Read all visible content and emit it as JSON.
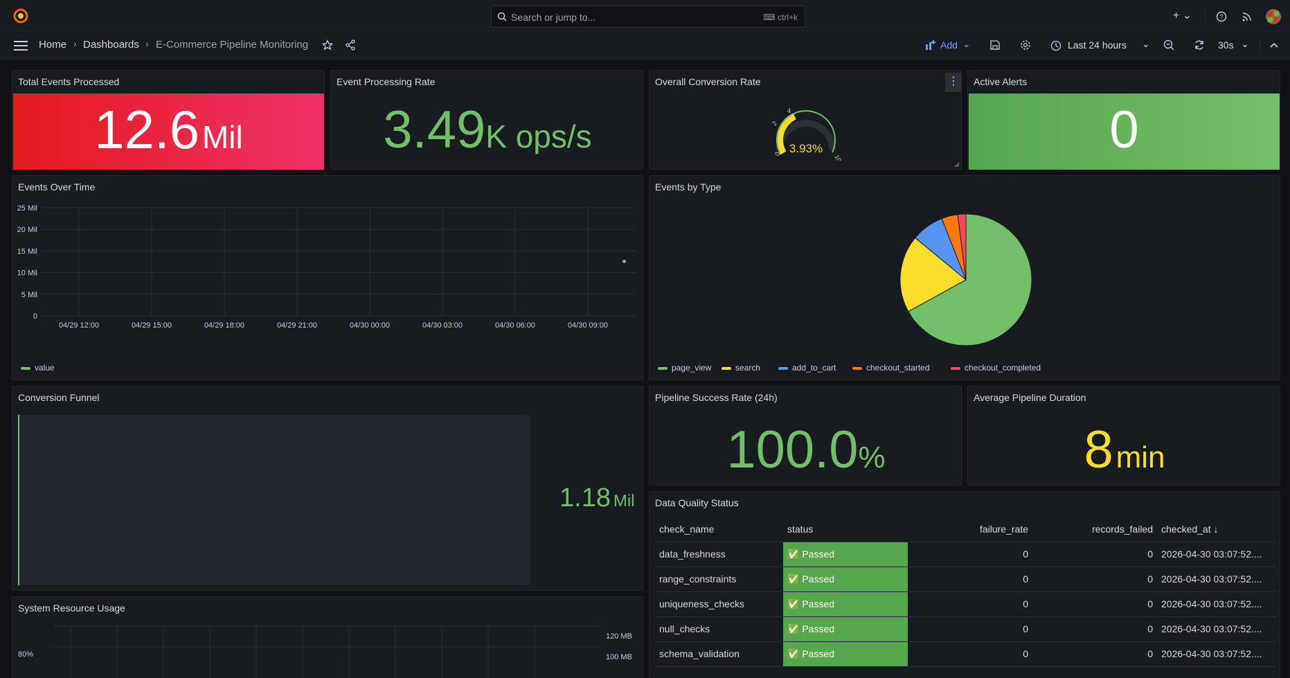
{
  "search": {
    "placeholder": "Search or jump to...",
    "shortcut": "ctrl+k"
  },
  "breadcrumb": {
    "home": "Home",
    "dashboards": "Dashboards",
    "current": "E-Commerce Pipeline Monitoring"
  },
  "toolbar": {
    "add_label": "Add",
    "time_range": "Last 24 hours",
    "refresh_interval": "30s"
  },
  "colors": {
    "red": "#e02f44",
    "green": "#73bf69",
    "yellow": "#fade2a",
    "blue": "#5794f2",
    "orange": "#ff780a",
    "pink": "#f2495c"
  },
  "panels": {
    "total_events": {
      "title": "Total Events Processed",
      "value": "12.6",
      "unit": "Mil"
    },
    "processing_rate": {
      "title": "Event Processing Rate",
      "value": "3.49",
      "unit": "K ops/s"
    },
    "conversion_rate": {
      "title": "Overall Conversion Rate",
      "value": "3.93%",
      "gauge_ticks": [
        "0",
        "2",
        "4",
        "10"
      ],
      "gauge_fraction": 0.393
    },
    "active_alerts": {
      "title": "Active Alerts",
      "value": "0"
    },
    "events_over_time": {
      "title": "Events Over Time",
      "legend": "value"
    },
    "events_by_type": {
      "title": "Events by Type"
    },
    "conversion_funnel": {
      "title": "Conversion Funnel",
      "value": "1.18",
      "unit": "Mil"
    },
    "pipeline_success": {
      "title": "Pipeline Success Rate (24h)",
      "value": "100.0",
      "unit": "%"
    },
    "avg_duration": {
      "title": "Average Pipeline Duration",
      "value": "8",
      "unit": "min"
    },
    "system_resource": {
      "title": "System Resource Usage",
      "y_left": [
        "80%"
      ],
      "y_right": [
        "120 MB",
        "100 MB"
      ]
    },
    "data_quality": {
      "title": "Data Quality Status",
      "columns": [
        "check_name",
        "status",
        "failure_rate",
        "records_failed",
        "checked_at"
      ],
      "rows": [
        {
          "check_name": "data_freshness",
          "status": "✅ Passed",
          "failure_rate": "0",
          "records_failed": "0",
          "checked_at": "2026-04-30 03:07:52...."
        },
        {
          "check_name": "range_constraints",
          "status": "✅ Passed",
          "failure_rate": "0",
          "records_failed": "0",
          "checked_at": "2026-04-30 03:07:52...."
        },
        {
          "check_name": "uniqueness_checks",
          "status": "✅ Passed",
          "failure_rate": "0",
          "records_failed": "0",
          "checked_at": "2026-04-30 03:07:52...."
        },
        {
          "check_name": "null_checks",
          "status": "✅ Passed",
          "failure_rate": "0",
          "records_failed": "0",
          "checked_at": "2026-04-30 03:07:52...."
        },
        {
          "check_name": "schema_validation",
          "status": "✅ Passed",
          "failure_rate": "0",
          "records_failed": "0",
          "checked_at": "2026-04-30 03:07:52...."
        }
      ]
    }
  },
  "chart_data": [
    {
      "type": "scatter",
      "title": "Events Over Time",
      "x_ticks": [
        "04/29 12:00",
        "04/29 15:00",
        "04/29 18:00",
        "04/29 21:00",
        "04/30 00:00",
        "04/30 03:00",
        "04/30 06:00",
        "04/30 09:00"
      ],
      "y_ticks": [
        "0",
        "5 Mil",
        "10 Mil",
        "15 Mil",
        "20 Mil",
        "25 Mil"
      ],
      "ylim": [
        0,
        25000000
      ],
      "series": [
        {
          "name": "value",
          "points": [
            {
              "x": "04/30 10:30",
              "y": 12600000
            }
          ]
        }
      ],
      "legend": "bottom-left",
      "grid": true
    },
    {
      "type": "pie",
      "title": "Events by Type",
      "categories": [
        "page_view",
        "search",
        "add_to_cart",
        "checkout_started",
        "checkout_completed"
      ],
      "values": [
        67,
        19,
        8,
        4,
        2
      ],
      "legend": "bottom"
    }
  ]
}
